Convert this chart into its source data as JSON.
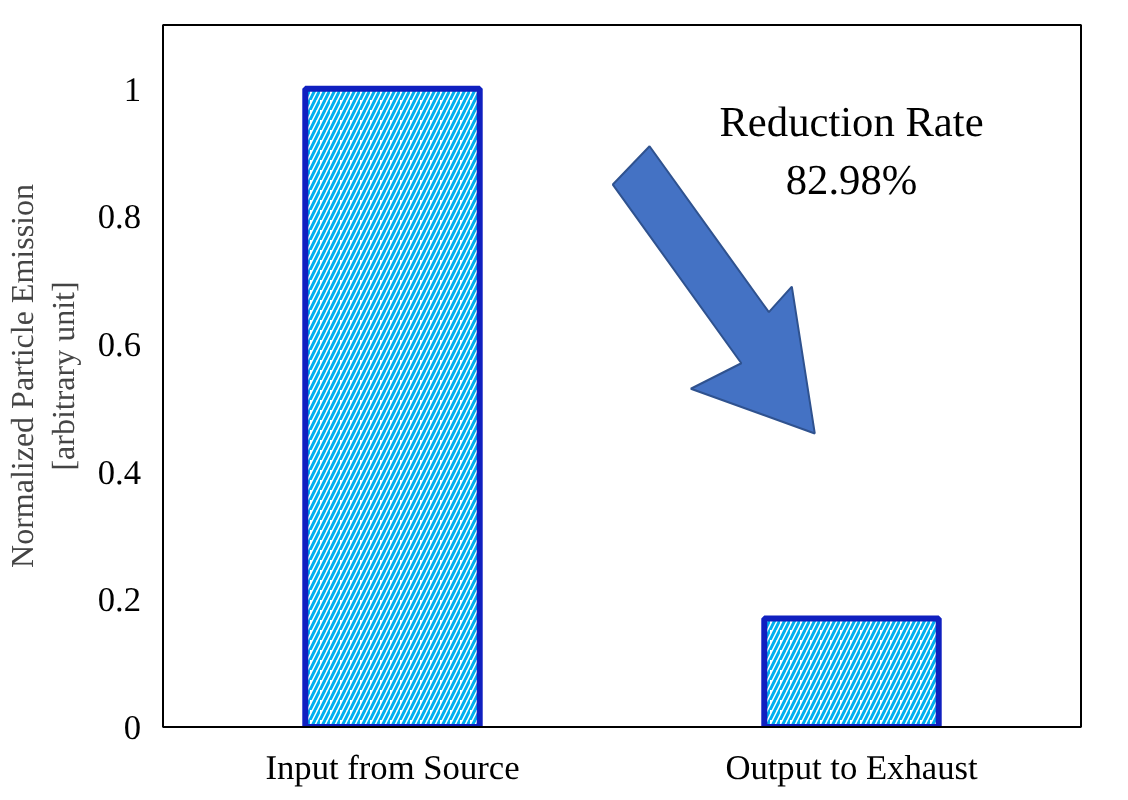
{
  "chart_data": {
    "type": "bar",
    "ylabel": "Normalized Particle Emission\n[arbitrary unit]",
    "categories": [
      "Input from Source",
      "Output to Exhaust"
    ],
    "values": [
      1,
      0.17
    ],
    "color": "#1020c0",
    "ylim": [
      0,
      1.1
    ],
    "yticks": [
      0,
      0.2,
      0.4,
      0.6,
      0.8,
      1
    ],
    "annotations": [
      "Reduction Rate\n82.98%"
    ],
    "grid": false
  }
}
